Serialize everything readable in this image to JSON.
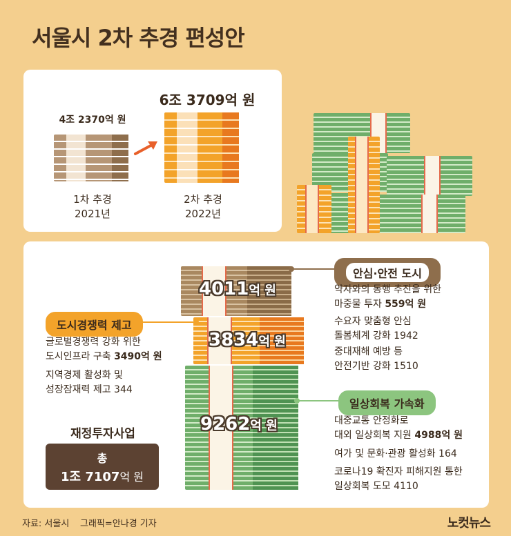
{
  "title": "서울시 2차 추경 편성안",
  "comparison": {
    "first": {
      "amount": "4조 2370억 원",
      "label": "1차 추경",
      "year": "2021년"
    },
    "second": {
      "amount": "6조 3709억 원",
      "label": "2차 추경",
      "year": "2022년"
    }
  },
  "stacks": [
    {
      "value": "4011",
      "unit": "억 원",
      "color": "#a98860"
    },
    {
      "value": "3834",
      "unit": "억 원",
      "color": "#f3a32a"
    },
    {
      "value": "9262",
      "unit": "억 원",
      "color": "#6fae6a"
    }
  ],
  "categories": {
    "safe_city": {
      "tag": "안심·안전 도시",
      "items": [
        {
          "line1": "약자와의 동행 추진을 위한",
          "line2_prefix": "마중물 투자 ",
          "line2_value": "559억 원"
        },
        {
          "line1": "수요자 맞춤형 안심",
          "line2_prefix": "돌봄체계 강화 1942",
          "line2_value": ""
        },
        {
          "line1": "중대재해 예방 등",
          "line2_prefix": "안전기반 강화 1510",
          "line2_value": ""
        }
      ]
    },
    "competitiveness": {
      "tag": "도시경쟁력 제고",
      "items": [
        {
          "line1": "글로벌경쟁력 강화 위한",
          "line2_prefix": "도시인프라 구축 ",
          "line2_value": "3490억 원"
        },
        {
          "line1": "지역경제 활성화 및",
          "line2_prefix": "성장잠재력 제고 344",
          "line2_value": ""
        }
      ]
    },
    "recovery": {
      "tag": "일상회복 가속화",
      "items": [
        {
          "line1": "대중교통 안정화로",
          "line2_prefix": "대외 일상회복 지원 ",
          "line2_value": "4988억 원"
        },
        {
          "line1": "여가 및 문화·관광 활성화 164",
          "line2_prefix": "",
          "line2_value": ""
        },
        {
          "line1": "코로나19 확진자 피해지원 통한",
          "line2_prefix": "일상회복 도모 4110",
          "line2_value": ""
        }
      ]
    }
  },
  "fiscal": {
    "title": "재정투자사업",
    "total_label": "총",
    "total_value": "1조 7107",
    "total_unit": "억 원"
  },
  "footer": {
    "source": "자료: 서울시",
    "credit": "그래픽=안나경 기자",
    "logo": "노컷뉴스"
  }
}
